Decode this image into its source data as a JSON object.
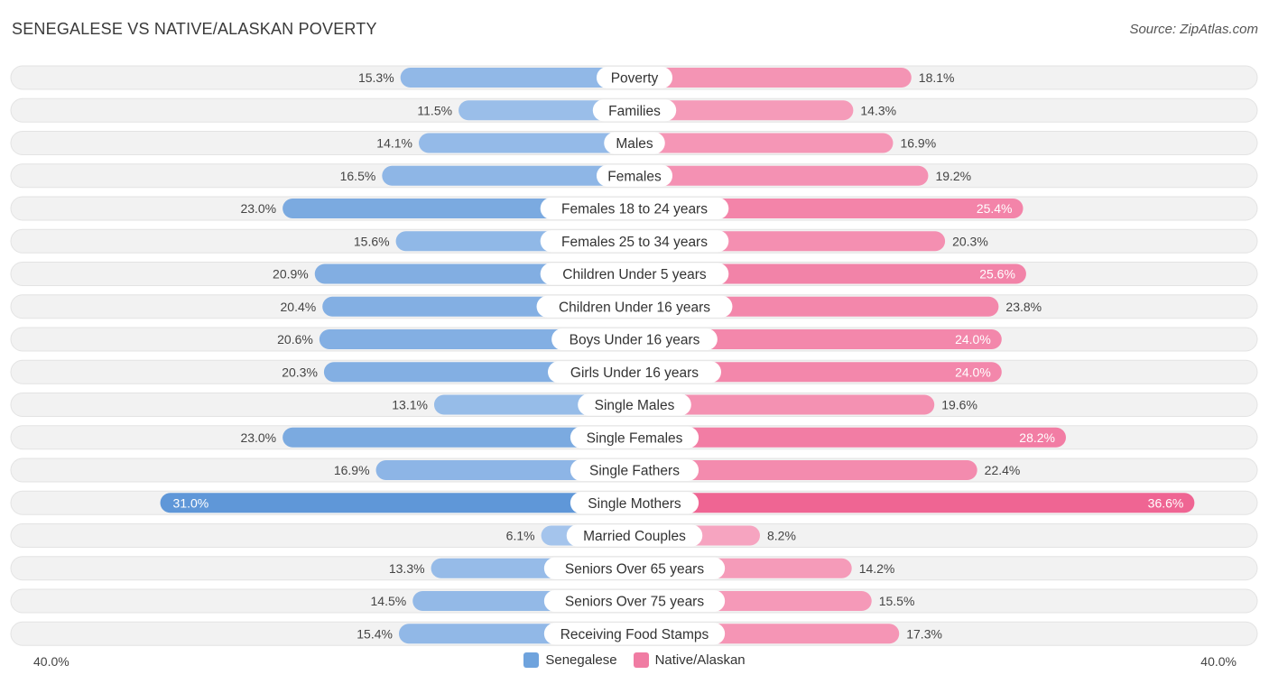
{
  "title": "SENEGALESE VS NATIVE/ALASKAN POVERTY",
  "source": "Source: ZipAtlas.com",
  "colors": {
    "left": "#6fa3dd",
    "left_light": "#a9c8ee",
    "right": "#f07ca3",
    "right_light": "#f7aac4",
    "track": "#efefef"
  },
  "axis": {
    "left_label": "40.0%",
    "right_label": "40.0%"
  },
  "legend": [
    {
      "label": "Senegalese",
      "color": "#6fa3dd"
    },
    {
      "label": "Native/Alaskan",
      "color": "#f07ca3"
    }
  ],
  "chart_data": {
    "type": "bar",
    "orientation": "horizontal-diverging",
    "title": "SENEGALESE VS NATIVE/ALASKAN POVERTY",
    "xlim": [
      -40,
      40
    ],
    "categories": [
      "Poverty",
      "Families",
      "Males",
      "Females",
      "Females 18 to 24 years",
      "Females 25 to 34 years",
      "Children Under 5 years",
      "Children Under 16 years",
      "Boys Under 16 years",
      "Girls Under 16 years",
      "Single Males",
      "Single Females",
      "Single Fathers",
      "Single Mothers",
      "Married Couples",
      "Seniors Over 65 years",
      "Seniors Over 75 years",
      "Receiving Food Stamps"
    ],
    "series": [
      {
        "name": "Senegalese",
        "values": [
          15.3,
          11.5,
          14.1,
          16.5,
          23.0,
          15.6,
          20.9,
          20.4,
          20.6,
          20.3,
          13.1,
          23.0,
          16.9,
          31.0,
          6.1,
          13.3,
          14.5,
          15.4
        ],
        "labels": [
          "15.3%",
          "11.5%",
          "14.1%",
          "16.5%",
          "23.0%",
          "15.6%",
          "20.9%",
          "20.4%",
          "20.6%",
          "20.3%",
          "13.1%",
          "23.0%",
          "16.9%",
          "31.0%",
          "6.1%",
          "13.3%",
          "14.5%",
          "15.4%"
        ]
      },
      {
        "name": "Native/Alaskan",
        "values": [
          18.1,
          14.3,
          16.9,
          19.2,
          25.4,
          20.3,
          25.6,
          23.8,
          24.0,
          24.0,
          19.6,
          28.2,
          22.4,
          36.6,
          8.2,
          14.2,
          15.5,
          17.3
        ],
        "labels": [
          "18.1%",
          "14.3%",
          "16.9%",
          "19.2%",
          "25.4%",
          "20.3%",
          "25.6%",
          "23.8%",
          "24.0%",
          "24.0%",
          "19.6%",
          "28.2%",
          "22.4%",
          "36.6%",
          "8.2%",
          "14.2%",
          "15.5%",
          "17.3%"
        ]
      }
    ]
  }
}
